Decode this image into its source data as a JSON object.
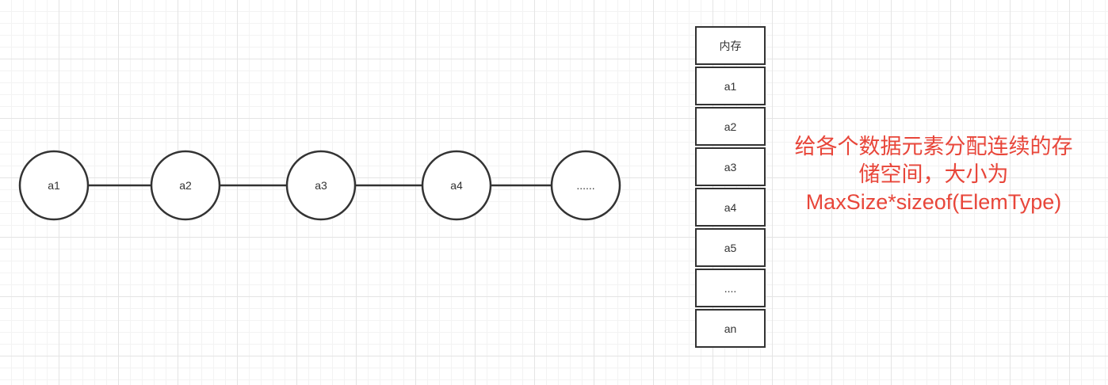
{
  "linked_list": {
    "nodes": [
      {
        "label": "a1"
      },
      {
        "label": "a2"
      },
      {
        "label": "a3"
      },
      {
        "label": "a4"
      },
      {
        "label": "......"
      }
    ]
  },
  "memory": {
    "header": "内存",
    "cells": [
      "a1",
      "a2",
      "a3",
      "a4",
      "a5",
      "....",
      "an"
    ]
  },
  "annotation": {
    "line1": "给各个数据元素分配连续的存",
    "line2": "储空间，大小为",
    "line3": "MaxSize*sizeof(ElemType)"
  },
  "colors": {
    "stroke": "#333333",
    "annotation_text": "#e8463a",
    "background": "#ffffff"
  }
}
